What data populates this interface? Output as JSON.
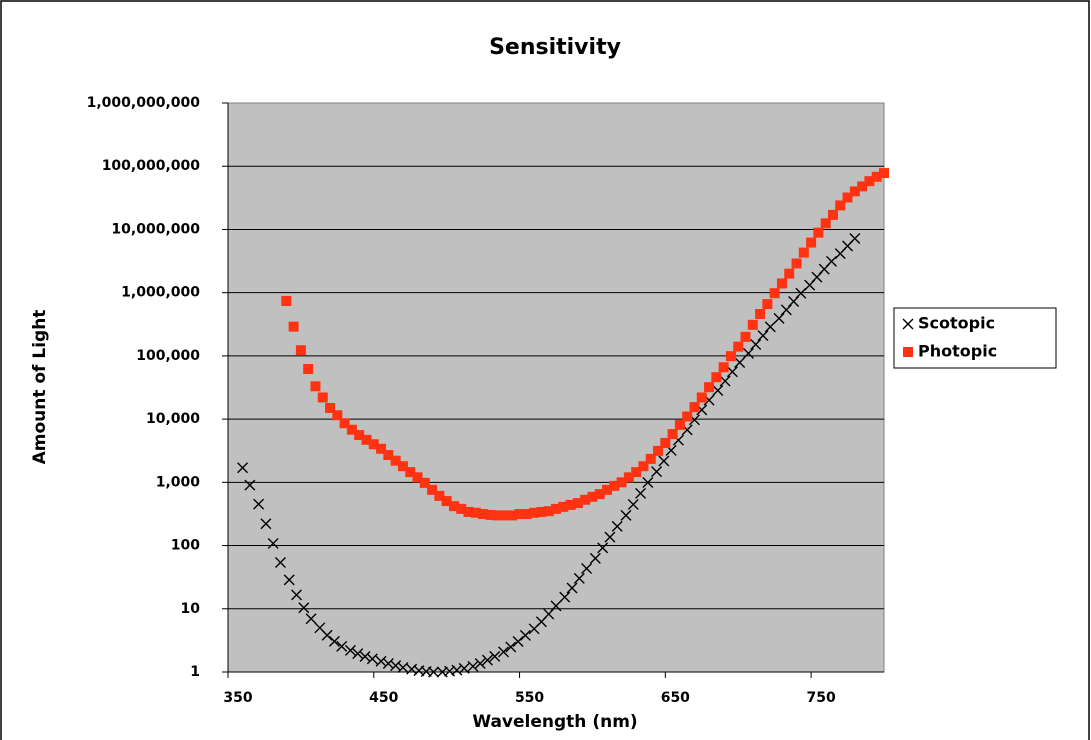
{
  "chart_data": {
    "type": "scatter",
    "title": "Sensitivity",
    "x_label": "Wavelength (nm)",
    "y_label": "Amount of Light",
    "xlim": [
      350,
      800
    ],
    "xticks": [
      350,
      450,
      550,
      650,
      750
    ],
    "ylim": [
      1,
      1000000000
    ],
    "y_scale": "log",
    "yticks": [
      1,
      10,
      100,
      {
        "value": 1000,
        "label": "1,000"
      },
      {
        "value": 10000,
        "label": "10,000"
      },
      {
        "value": 100000,
        "label": "100,000"
      },
      {
        "value": 1000000,
        "label": "1,000,000"
      },
      {
        "value": 10000000,
        "label": "10,000,000"
      },
      {
        "value": 100000000,
        "label": "100,000,000"
      },
      {
        "value": 1000000000,
        "label": "1,000,000,000"
      }
    ],
    "grid": true,
    "legend": "right",
    "plot_background": "#c0c0c0",
    "series": [
      {
        "name": "Scotopic",
        "color": "#000000",
        "marker": "x",
        "x": [
          360,
          365,
          371,
          376,
          381,
          386,
          392,
          397,
          402,
          407,
          413,
          418,
          423,
          428,
          434,
          439,
          444,
          449,
          455,
          460,
          465,
          470,
          476,
          481,
          486,
          491,
          497,
          502,
          507,
          512,
          518,
          523,
          528,
          533,
          539,
          544,
          549,
          554,
          560,
          565,
          570,
          575,
          581,
          586,
          591,
          596,
          602,
          607,
          612,
          617,
          623,
          628,
          633,
          638,
          644,
          649,
          654,
          659,
          665,
          670,
          675,
          680,
          686,
          691,
          696,
          701,
          707,
          712,
          717,
          722,
          728,
          733,
          738,
          743,
          749,
          754,
          759,
          764,
          770,
          775,
          780
        ],
        "values": [
          1698,
          903,
          453,
          221,
          108,
          54,
          28.7,
          16.6,
          10.4,
          6.96,
          5.0,
          3.81,
          3.05,
          2.54,
          2.2,
          1.95,
          1.76,
          1.61,
          1.48,
          1.36,
          1.26,
          1.18,
          1.11,
          1.05,
          1.02,
          1.0,
          1.0,
          1.03,
          1.07,
          1.14,
          1.23,
          1.36,
          1.54,
          1.77,
          2.08,
          2.49,
          3.04,
          3.79,
          4.82,
          6.24,
          8.25,
          11.1,
          15.3,
          21.3,
          30.2,
          43.3,
          62.8,
          91.9,
          136,
          201,
          300,
          447,
          668,
          995,
          1477,
          2179,
          3196,
          4660,
          6757,
          9747,
          13986,
          19960,
          28305,
          39984,
          56180,
          78555,
          109409,
          151515,
          209205,
          287191,
          392773,
          534759,
          725163,
          978474,
          1315789,
          1763668,
          2352941,
          3128911,
          4144219,
          5467469,
          7194245
        ]
      },
      {
        "name": "Photopic",
        "color": "#ff3311",
        "marker": "square",
        "x": [
          390,
          395,
          400,
          405,
          410,
          415,
          420,
          425,
          430,
          435,
          440,
          445,
          450,
          455,
          460,
          465,
          470,
          475,
          480,
          485,
          490,
          495,
          500,
          505,
          510,
          515,
          520,
          525,
          530,
          535,
          540,
          545,
          550,
          555,
          560,
          565,
          570,
          575,
          580,
          585,
          590,
          595,
          600,
          605,
          610,
          615,
          620,
          625,
          630,
          635,
          640,
          645,
          650,
          655,
          660,
          665,
          670,
          675,
          680,
          685,
          690,
          695,
          700,
          705,
          710,
          715,
          720,
          725,
          730,
          735,
          740,
          745,
          750,
          755,
          760,
          765,
          770,
          775,
          780,
          785,
          790,
          795,
          800
        ],
        "values": [
          740000,
          290000,
          123000,
          62000,
          33000,
          22000,
          15000,
          11500,
          8600,
          6800,
          5600,
          4700,
          4000,
          3400,
          2700,
          2200,
          1800,
          1450,
          1200,
          980,
          760,
          610,
          505,
          420,
          380,
          340,
          330,
          315,
          305,
          300,
          300,
          300,
          315,
          315,
          330,
          340,
          350,
          380,
          410,
          440,
          470,
          530,
          590,
          650,
          760,
          880,
          1000,
          1200,
          1450,
          1800,
          2350,
          3150,
          4200,
          5800,
          8100,
          11000,
          15500,
          22000,
          32000,
          46000,
          66000,
          99000,
          140000,
          200000,
          310000,
          460000,
          660000,
          980000,
          1400000,
          2000000,
          2900000,
          4300000,
          6200000,
          8900000,
          12500000,
          17000000,
          24000000,
          32000000,
          40000000,
          48000000,
          58000000,
          68000000,
          78000000
        ]
      }
    ]
  }
}
